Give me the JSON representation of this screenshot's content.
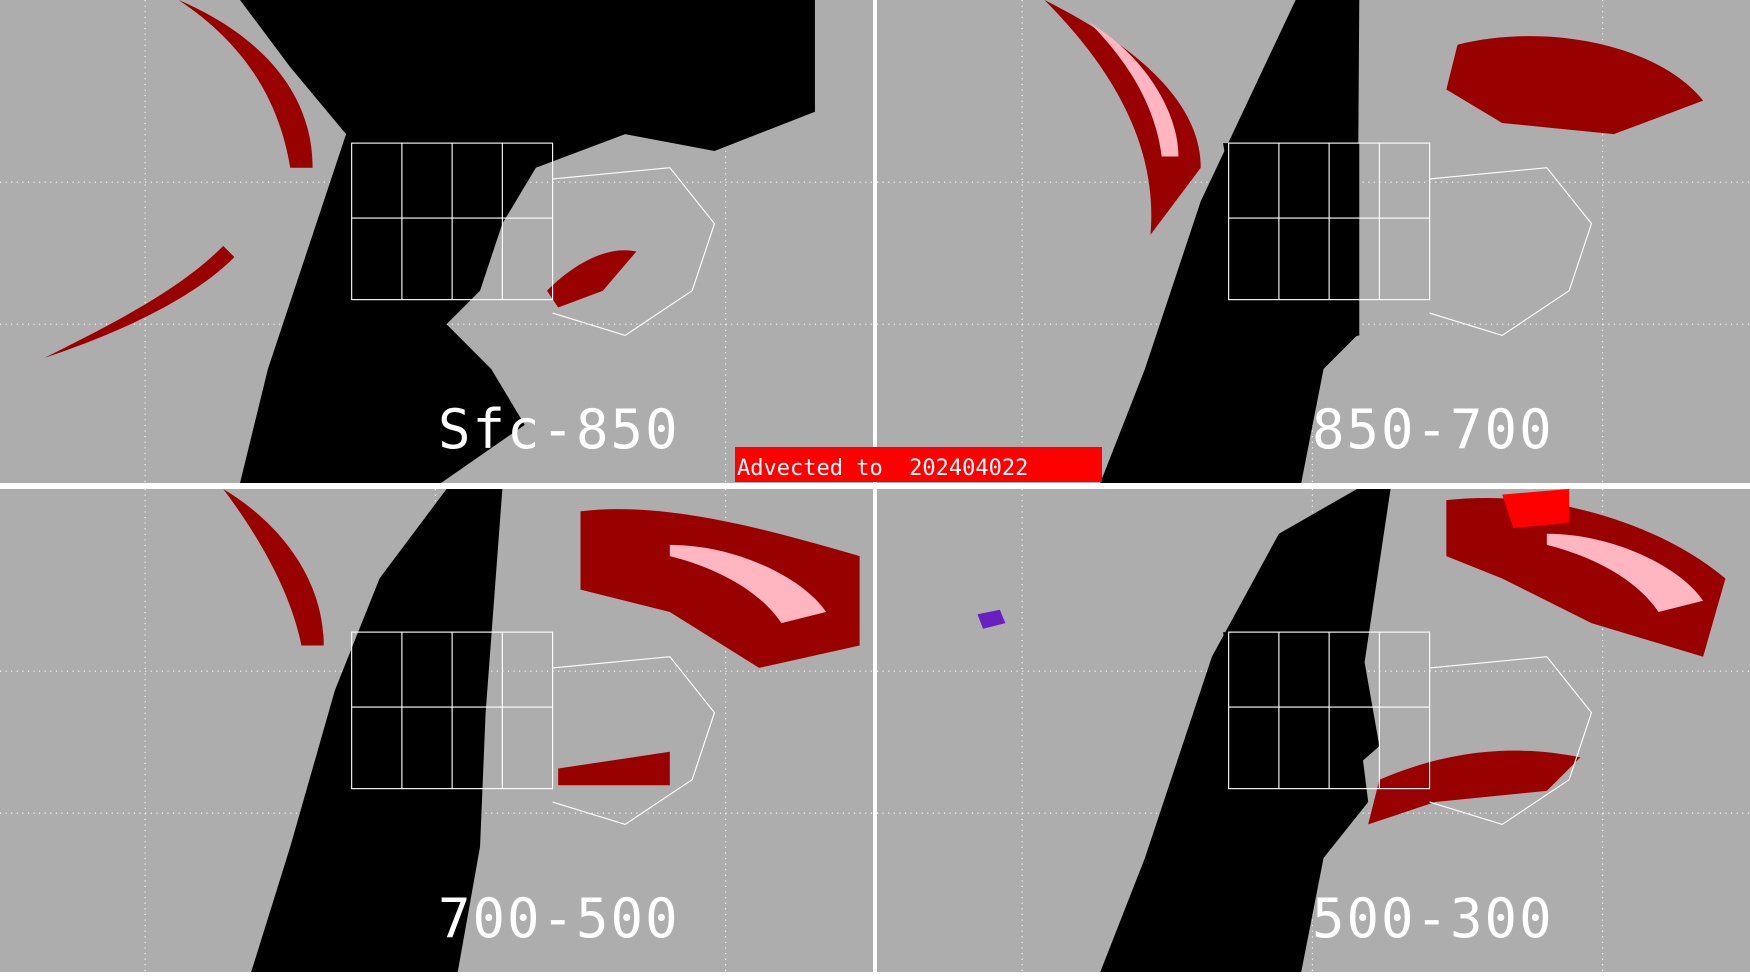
{
  "panels": [
    {
      "label": "Sfc-850"
    },
    {
      "label": "850-700"
    },
    {
      "label": "700-500"
    },
    {
      "label": "500-300"
    }
  ],
  "banner": {
    "text": "Advected to  202404022"
  },
  "colors": {
    "background": "#adadad",
    "night": "#000000",
    "dark_red": "#990000",
    "pink": "#ffb6c1",
    "bright_red": "#ff0000",
    "purple": "#6a1fbf",
    "outlines": "#ffffff"
  }
}
